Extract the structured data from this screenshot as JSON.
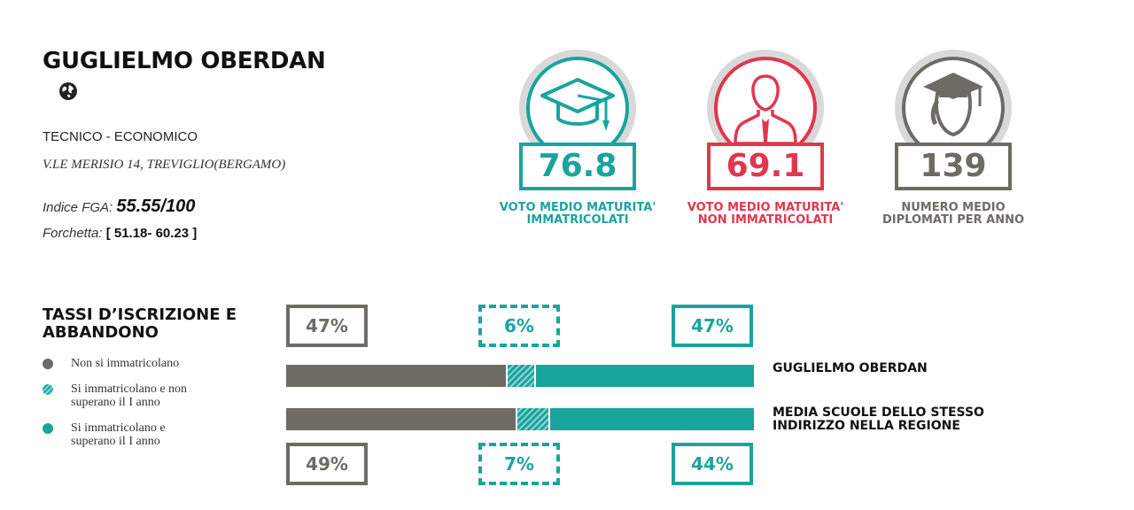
{
  "school": {
    "name": "GUGLIELMO OBERDAN",
    "type": "TECNICO - ECONOMICO",
    "address": "V.LE MERISIO 14, TREVIGLIO(BERGAMO)",
    "index_label": "Indice FGA:",
    "index_value": "55.55/100",
    "fork_label": "Forchetta:",
    "fork_value": "[ 51.18- 60.23 ]",
    "link_icon": "globe-icon"
  },
  "stats": [
    {
      "value": "76.8",
      "caption_line1": "VOTO MEDIO MATURITA'",
      "caption_line2": "IMMATRICOLATI",
      "icon": "graduation-cap-icon",
      "color": "#1aa49e"
    },
    {
      "value": "69.1",
      "caption_line1": "VOTO MEDIO MATURITA'",
      "caption_line2": "NON IMMATRICOLATI",
      "icon": "person-icon",
      "color": "#e0374f"
    },
    {
      "value": "139",
      "caption_line1": "NUMERO MEDIO",
      "caption_line2": "DIPLOMATI PER ANNO",
      "icon": "graduate-icon",
      "color": "#6d6b64"
    }
  ],
  "chart_data": {
    "type": "bar",
    "orientation": "horizontal-stacked",
    "title_line1": "TASSI D’ISCRIZIONE E",
    "title_line2": "ABBANDONO",
    "categories": [
      "GUGLIELMO OBERDAN",
      "MEDIA SCUOLE DELLO STESSO INDIRIZZO NELLA REGIONE"
    ],
    "category_label_lines": [
      [
        "GUGLIELMO OBERDAN"
      ],
      [
        "MEDIA SCUOLE DELLO STESSO",
        "INDIRIZZO NELLA REGIONE"
      ]
    ],
    "series": [
      {
        "name": "Non si immatricolano",
        "values": [
          47,
          49
        ],
        "labels": [
          "47%",
          "49%"
        ],
        "color": "#6d6b64",
        "pattern": "solid"
      },
      {
        "name": "Si immatricolano e non superano il I anno",
        "name_lines": [
          "Si immatricolano e non",
          "superano il I anno"
        ],
        "values": [
          6,
          7
        ],
        "labels": [
          "6%",
          "7%"
        ],
        "color": "#1aa49e",
        "pattern": "hatched"
      },
      {
        "name": "Si immatricolano e superano il I anno",
        "name_lines": [
          "Si immatricolano e",
          "superano il I anno"
        ],
        "values": [
          47,
          44
        ],
        "labels": [
          "47%",
          "44%"
        ],
        "color": "#1aa49e",
        "pattern": "solid"
      }
    ],
    "xlim": [
      0,
      100
    ],
    "legend_placement": "left"
  }
}
